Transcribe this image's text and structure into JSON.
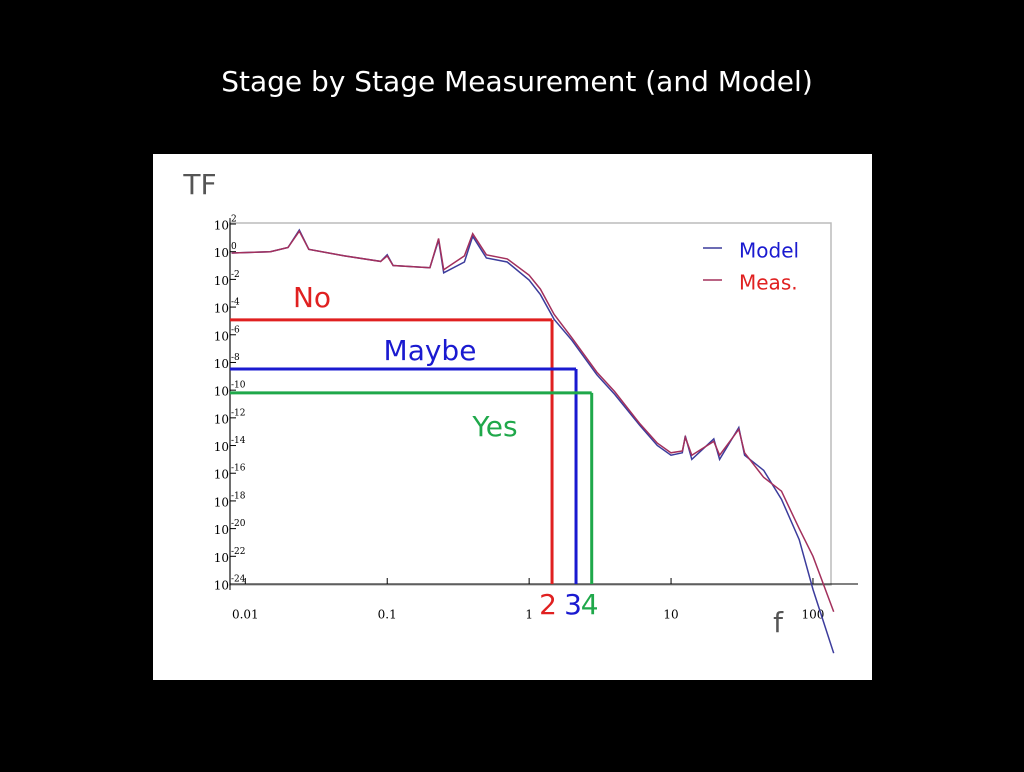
{
  "title": "Stage by Stage Measurement (and Model)",
  "chart_data": {
    "type": "line",
    "ylabel": "TF",
    "xlabel": "f",
    "xscale": "log",
    "yscale": "log",
    "xlim": [
      0.0078,
      134
    ],
    "ylim": [
      1e-24,
      100
    ],
    "xticks": [
      0.01,
      0.1,
      1,
      10,
      100
    ],
    "yticks": [
      {
        "value": 100,
        "label": "10",
        "sup": "2"
      },
      {
        "value": 1,
        "label": "10",
        "sup": "0"
      },
      {
        "value": 0.01,
        "label": "10",
        "sup": "-2"
      },
      {
        "value": 0.0001,
        "label": "10",
        "sup": "-4"
      },
      {
        "value": 1e-06,
        "label": "10",
        "sup": "-6"
      },
      {
        "value": 1e-08,
        "label": "10",
        "sup": "-8"
      },
      {
        "value": 1e-10,
        "label": "10",
        "sup": "-10"
      },
      {
        "value": 1e-12,
        "label": "10",
        "sup": "-12"
      },
      {
        "value": 1e-14,
        "label": "10",
        "sup": "-14"
      },
      {
        "value": 1e-16,
        "label": "10",
        "sup": "-16"
      },
      {
        "value": 1e-18,
        "label": "10",
        "sup": "-18"
      },
      {
        "value": 1e-20,
        "label": "10",
        "sup": "-20"
      },
      {
        "value": 1e-22,
        "label": "10",
        "sup": "-22"
      },
      {
        "value": 1e-24,
        "label": "10",
        "sup": "-24"
      }
    ],
    "legend": "top-right",
    "x": [
      0.008,
      0.015,
      0.02,
      0.024,
      0.028,
      0.05,
      0.09,
      0.1,
      0.11,
      0.2,
      0.23,
      0.25,
      0.35,
      0.4,
      0.5,
      0.7,
      1,
      1.2,
      1.5,
      2,
      3,
      4,
      6,
      8,
      10,
      12,
      12.6,
      14,
      20,
      22,
      30,
      33,
      45,
      60,
      80,
      100,
      140
    ],
    "series": [
      {
        "name": "Model",
        "color": "#3c3c9c",
        "values": [
          0.8,
          1,
          2,
          37,
          1.5,
          0.5,
          0.2,
          0.6,
          0.1,
          0.07,
          7,
          0.03,
          0.18,
          13,
          0.35,
          0.18,
          0.009,
          0.0008,
          1.3e-05,
          4e-07,
          1.3e-09,
          5e-11,
          3e-13,
          1e-14,
          2e-15,
          3e-15,
          5e-14,
          1e-15,
          3e-14,
          1e-15,
          2e-13,
          2e-15,
          1.6e-16,
          1.3e-18,
          1.6e-21,
          4e-25,
          1e-29
        ]
      },
      {
        "name": "Meas.",
        "color": "#a3305c",
        "values": [
          0.8,
          1,
          2,
          30,
          1.5,
          0.5,
          0.2,
          0.5,
          0.1,
          0.07,
          9,
          0.05,
          0.5,
          20,
          0.6,
          0.3,
          0.02,
          0.002,
          3e-05,
          6e-07,
          2e-09,
          8e-11,
          4e-13,
          1.5e-14,
          3e-15,
          4e-15,
          4e-14,
          2e-15,
          2e-14,
          2e-15,
          1.5e-13,
          3e-15,
          5e-17,
          5e-18,
          1e-20,
          1e-22,
          1e-26
        ]
      }
    ],
    "annotations": [
      {
        "text": "No",
        "level": 1.2e-05,
        "f": 1.45,
        "marker": "2",
        "color": "#e02020"
      },
      {
        "text": "Maybe",
        "level": 3.4e-09,
        "f": 2.14,
        "marker": "3",
        "color": "#1a1ad0"
      },
      {
        "text": "Yes",
        "level": 6.3e-11,
        "f": 2.76,
        "marker": "4",
        "color": "#1fa84a"
      }
    ]
  }
}
